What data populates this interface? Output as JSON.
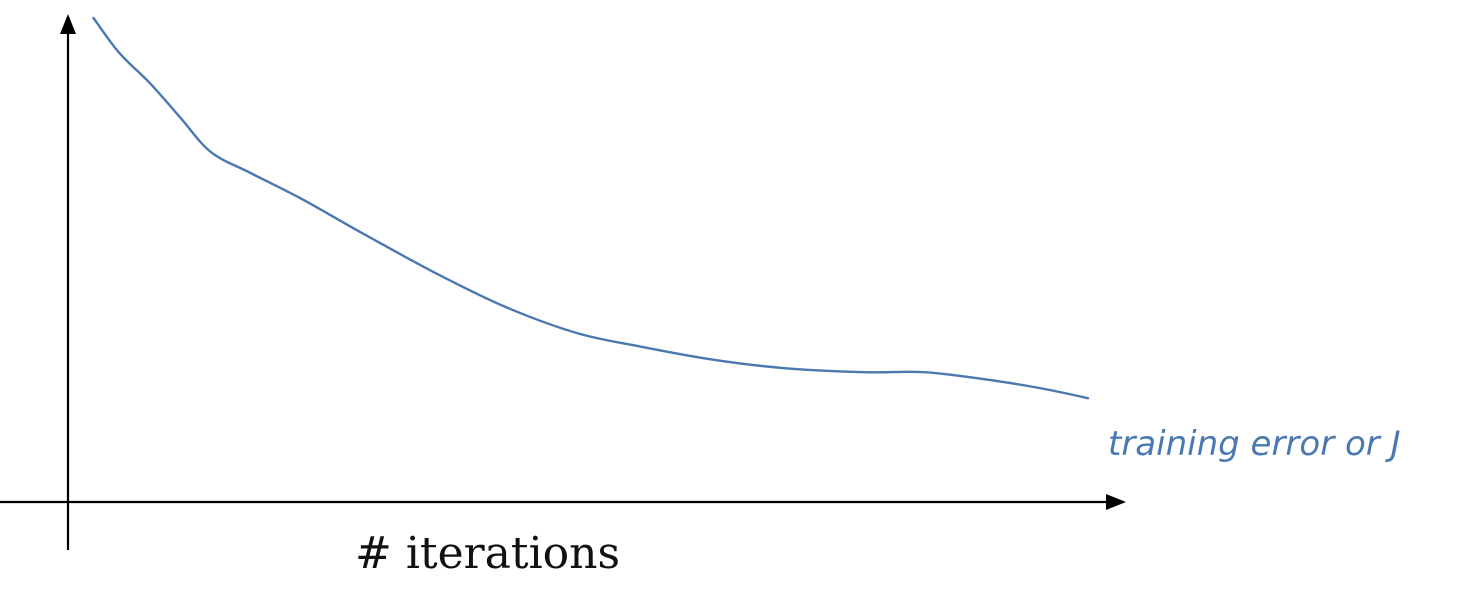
{
  "chart_data": {
    "type": "line",
    "title": "",
    "xlabel": "# iterations",
    "ylabel": "",
    "xlim": [
      0,
      100
    ],
    "ylim": [
      0,
      100
    ],
    "grid": false,
    "legend": "none",
    "line_color": "#4a78b0",
    "axis_color": "#000000",
    "annotation": {
      "text": "training error or J",
      "color": "#4a78b0"
    },
    "series": [
      {
        "x": [
          2.5,
          5,
          8,
          11,
          14,
          18,
          23,
          29,
          36,
          43,
          50,
          56,
          63,
          70,
          78,
          84,
          91,
          96,
          100
        ],
        "y": [
          100,
          92,
          85,
          77,
          69,
          64,
          58,
          50,
          41,
          33,
          27,
          24,
          21,
          19,
          18,
          18,
          16,
          14,
          12
        ]
      }
    ]
  }
}
